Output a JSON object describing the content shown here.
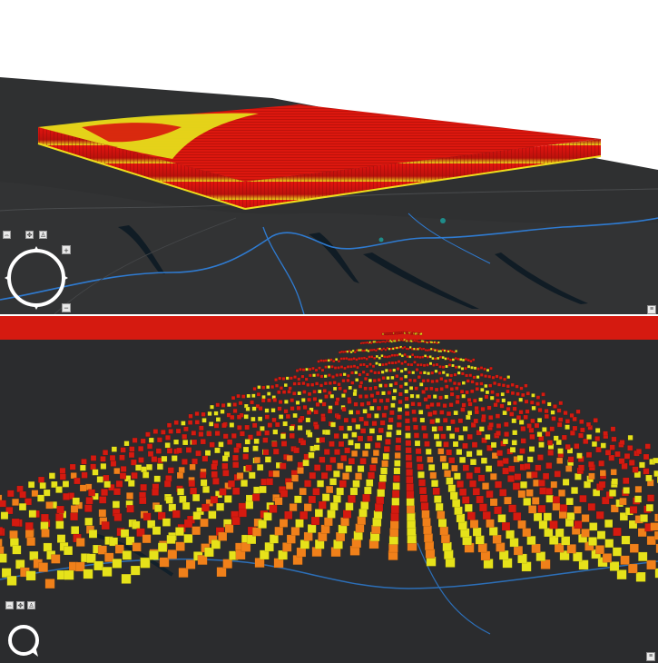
{
  "scene": {
    "top_view": {
      "name": "3D voxel extrusion over map – oblique view",
      "colors": {
        "red": "#d7160d",
        "orange": "#f08a14",
        "yellow": "#e7e318",
        "map_dark": "#2f3031",
        "river": "#2f7bd1",
        "water_body": "#14202a"
      }
    },
    "bottom_view": {
      "name": "3D voxel columns – low angle view",
      "colors": {
        "red": "#d51a10",
        "orange": "#f0801a",
        "yellow": "#e6e21a",
        "map_dark": "#2b2c2e"
      }
    }
  },
  "navigation": {
    "top": {
      "zoom_in_icon": "plus-icon",
      "zoom_out_icon": "minus-icon",
      "compass_icon": "compass-ring-icon"
    },
    "bottom": {
      "compass_icon": "compass-arrow-icon"
    }
  }
}
